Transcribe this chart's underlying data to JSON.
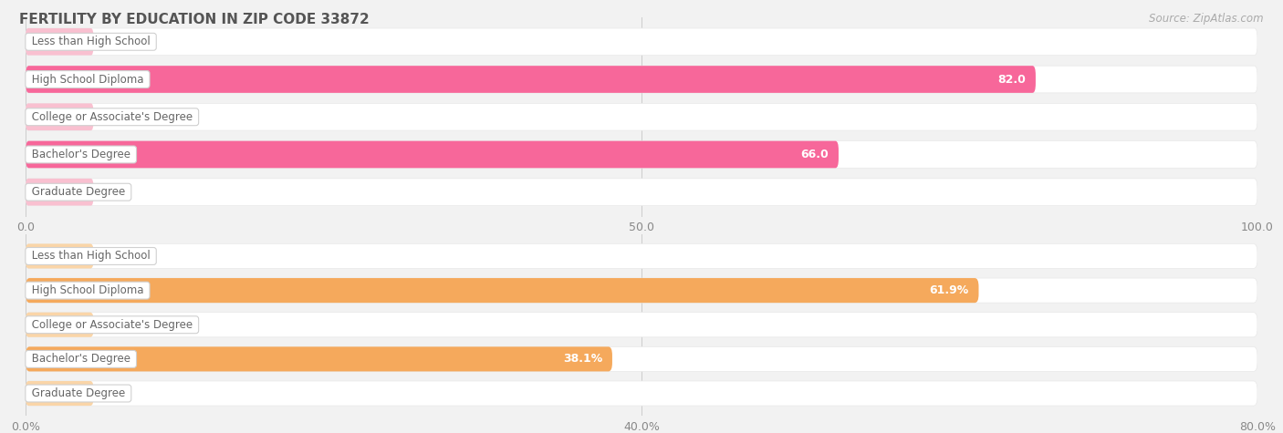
{
  "title": "FERTILITY BY EDUCATION IN ZIP CODE 33872",
  "source": "Source: ZipAtlas.com",
  "top_chart": {
    "categories": [
      "Less than High School",
      "High School Diploma",
      "College or Associate's Degree",
      "Bachelor's Degree",
      "Graduate Degree"
    ],
    "values": [
      0.0,
      82.0,
      0.0,
      66.0,
      0.0
    ],
    "xlim": [
      0,
      100
    ],
    "xticks": [
      0.0,
      50.0,
      100.0
    ],
    "xtick_labels": [
      "0.0",
      "50.0",
      "100.0"
    ],
    "bar_color_full": "#f7679a",
    "bar_color_zero": "#f9c0d0",
    "label_color_inside": "#ffffff",
    "label_color_outside": "#999999",
    "bar_height": 0.72
  },
  "bottom_chart": {
    "categories": [
      "Less than High School",
      "High School Diploma",
      "College or Associate's Degree",
      "Bachelor's Degree",
      "Graduate Degree"
    ],
    "values": [
      0.0,
      61.9,
      0.0,
      38.1,
      0.0
    ],
    "xlim": [
      0,
      80
    ],
    "xticks": [
      0.0,
      40.0,
      80.0
    ],
    "xtick_labels": [
      "0.0%",
      "40.0%",
      "80.0%"
    ],
    "bar_color_full": "#f5a95c",
    "bar_color_zero": "#fad5a8",
    "label_color_inside": "#ffffff",
    "label_color_outside": "#999999",
    "bar_height": 0.72
  },
  "background_color": "#f2f2f2",
  "bar_bg_color": "#ffffff",
  "separator_color": "#e0e0e0",
  "title_color": "#555555",
  "source_color": "#aaaaaa",
  "label_font_size": 9,
  "tick_font_size": 9,
  "title_font_size": 11,
  "category_label_font_size": 8.5,
  "cat_label_color": "#666666"
}
